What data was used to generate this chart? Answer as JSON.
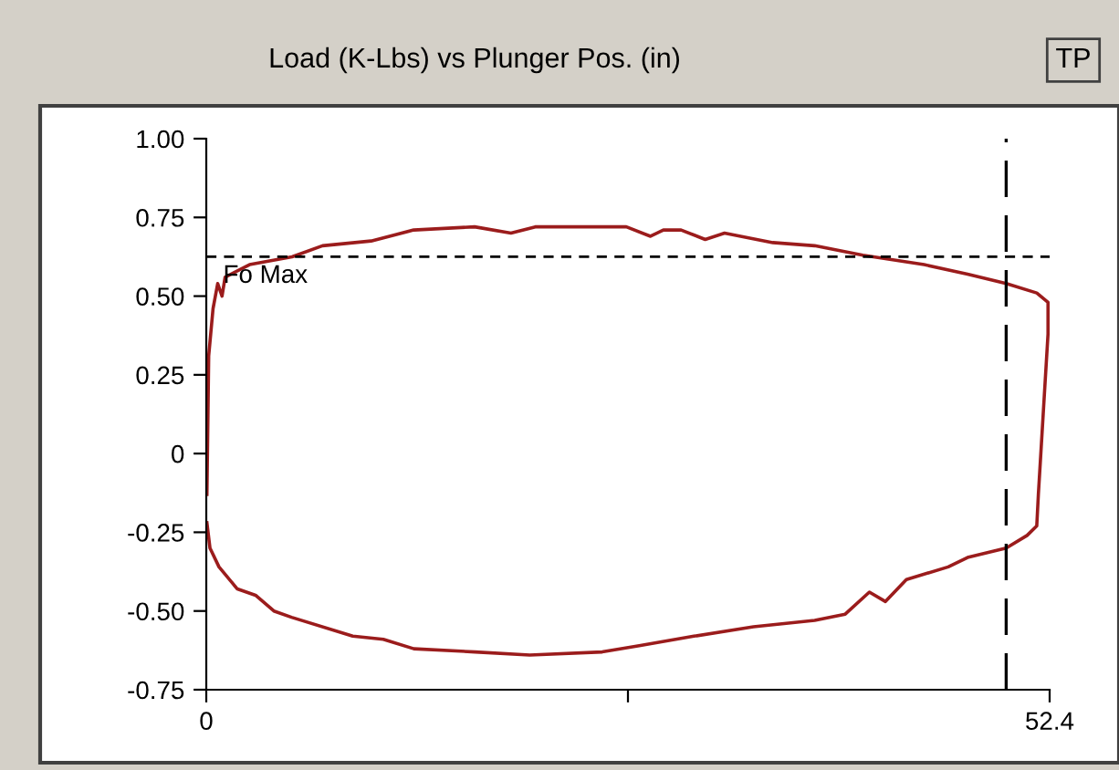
{
  "chart_data": {
    "type": "line",
    "title": "Load (K-Lbs) vs Plunger Pos. (in)",
    "annotations": [
      "TP"
    ],
    "series": [
      {
        "color": "#9b1c1c",
        "x": [
          0.04,
          0.15,
          0.42,
          0.71,
          0.98,
          1.17,
          2.69,
          5.33,
          7.22,
          10.24,
          12.89,
          16.67,
          18.93,
          20.44,
          24.6,
          26.1,
          27.6,
          28.4,
          29.5,
          31.0,
          32.2,
          35.2,
          37.8,
          40.8,
          44.6,
          47.3,
          49.7,
          51.6,
          52.3,
          52.3,
          52.0,
          51.7,
          51.6,
          51.0,
          49.7,
          47.3,
          46.1,
          43.5,
          42.2,
          41.2,
          39.7,
          37.8,
          34.0,
          30.3,
          26.9,
          24.6,
          20.1,
          16.7,
          12.9,
          11.0,
          9.1,
          5.3,
          4.2,
          3.06,
          1.93,
          0.79,
          0.23,
          0.04
        ],
        "values": [
          -0.13,
          0.31,
          0.46,
          0.54,
          0.5,
          0.56,
          0.6,
          0.625,
          0.66,
          0.675,
          0.71,
          0.72,
          0.7,
          0.72,
          0.72,
          0.72,
          0.69,
          0.71,
          0.71,
          0.68,
          0.7,
          0.67,
          0.66,
          0.63,
          0.6,
          0.57,
          0.54,
          0.51,
          0.48,
          0.38,
          0.125,
          -0.13,
          -0.23,
          -0.26,
          -0.3,
          -0.33,
          -0.36,
          -0.4,
          -0.47,
          -0.44,
          -0.51,
          -0.53,
          -0.55,
          -0.58,
          -0.61,
          -0.63,
          -0.64,
          -0.63,
          -0.62,
          -0.59,
          -0.58,
          -0.52,
          -0.5,
          -0.45,
          -0.43,
          -0.36,
          -0.3,
          -0.22
        ]
      }
    ],
    "xlim": [
      0,
      52.4
    ],
    "xticks": [
      0,
      {
        "value": 26.2,
        "label": null
      },
      52.4
    ],
    "ylim": [
      -0.75,
      1.0
    ],
    "yticks": [
      {
        "value": 1.0,
        "label": "1.00"
      },
      {
        "value": 0.75,
        "label": "0.75"
      },
      {
        "value": 0.5,
        "label": "0.50"
      },
      {
        "value": 0.25,
        "label": "0.25"
      },
      0,
      {
        "value": -0.25,
        "label": "-0.25"
      },
      {
        "value": -0.5,
        "label": "-0.50"
      },
      {
        "value": -0.75,
        "label": "-0.75"
      }
    ],
    "ref_lines": [
      {
        "axis": "y",
        "value": 0.625,
        "label": "Fo Max",
        "color": "#000000",
        "line_style": "dashed"
      },
      {
        "axis": "x",
        "value": 49.7,
        "color": "#000000",
        "line_style": "dashed"
      }
    ],
    "grid": false,
    "legend": false,
    "marker": "none",
    "line_style": "solid"
  }
}
